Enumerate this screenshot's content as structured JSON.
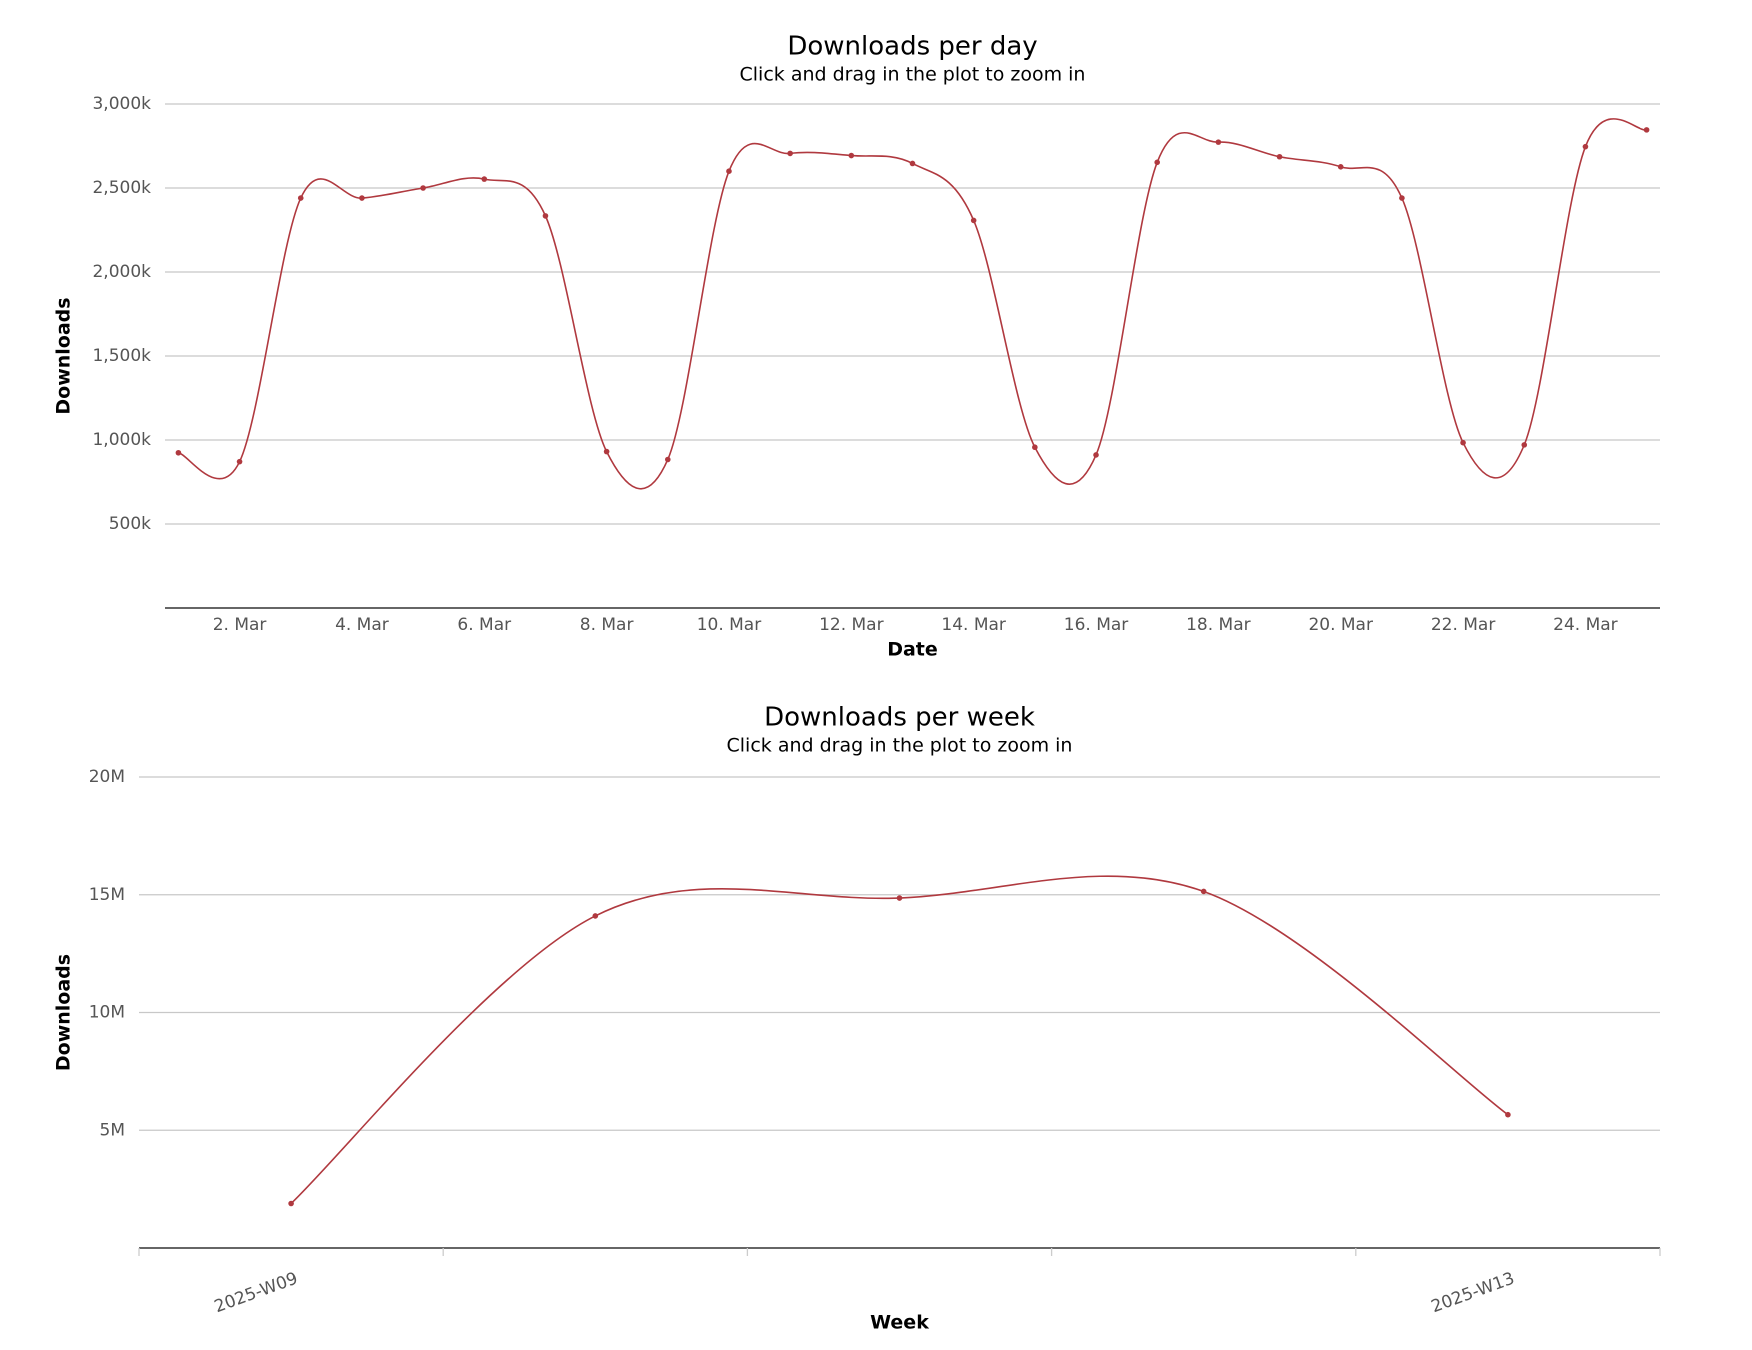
{
  "chart_data": [
    {
      "type": "line",
      "title": "Downloads per day",
      "subtitle": "Click and drag in the plot to zoom in",
      "x_label": "Date",
      "y_label": "Downloads",
      "categories": [
        null,
        "2. Mar",
        null,
        "4. Mar",
        null,
        "6. Mar",
        null,
        "8. Mar",
        null,
        "10. Mar",
        null,
        "12. Mar",
        null,
        "14. Mar",
        null,
        "16. Mar",
        null,
        "18. Mar",
        null,
        "20. Mar",
        null,
        "22. Mar",
        null,
        "24. Mar",
        null
      ],
      "series": [
        {
          "name": "Downloads",
          "color": "#b0393f",
          "values": [
            924000,
            871000,
            2440000,
            2440000,
            2500000,
            2553000,
            2334000,
            931000,
            884000,
            2600000,
            2706000,
            2693000,
            2646000,
            2307000,
            957000,
            911000,
            2653000,
            2773000,
            2686000,
            2626000,
            2440000,
            984000,
            971000,
            2746000,
            2846000
          ]
        }
      ],
      "ylim": [
        0,
        3000000
      ],
      "yticks": [
        {
          "value": 500000,
          "label": "500k"
        },
        {
          "value": 1000000,
          "label": "1,000k"
        },
        {
          "value": 1500000,
          "label": "1,500k"
        },
        {
          "value": 2000000,
          "label": "2,000k"
        },
        {
          "value": 2500000,
          "label": "2,500k"
        },
        {
          "value": 3000000,
          "label": "3,000k"
        }
      ],
      "grid": true
    },
    {
      "type": "line",
      "title": "Downloads per week",
      "subtitle": "Click and drag in the plot to zoom in",
      "x_label": "Week",
      "y_label": "Downloads",
      "categories": [
        "2025-W09",
        null,
        null,
        null,
        "2025-W13"
      ],
      "series": [
        {
          "name": "Downloads",
          "color": "#b0393f",
          "values": [
            1890000,
            14100000,
            14860000,
            15140000,
            5660000
          ]
        }
      ],
      "ylim": [
        0,
        20000000
      ],
      "yticks": [
        {
          "value": 5000000,
          "label": "5M"
        },
        {
          "value": 10000000,
          "label": "10M"
        },
        {
          "value": 15000000,
          "label": "15M"
        },
        {
          "value": 20000000,
          "label": "20M"
        }
      ],
      "grid": true
    }
  ]
}
